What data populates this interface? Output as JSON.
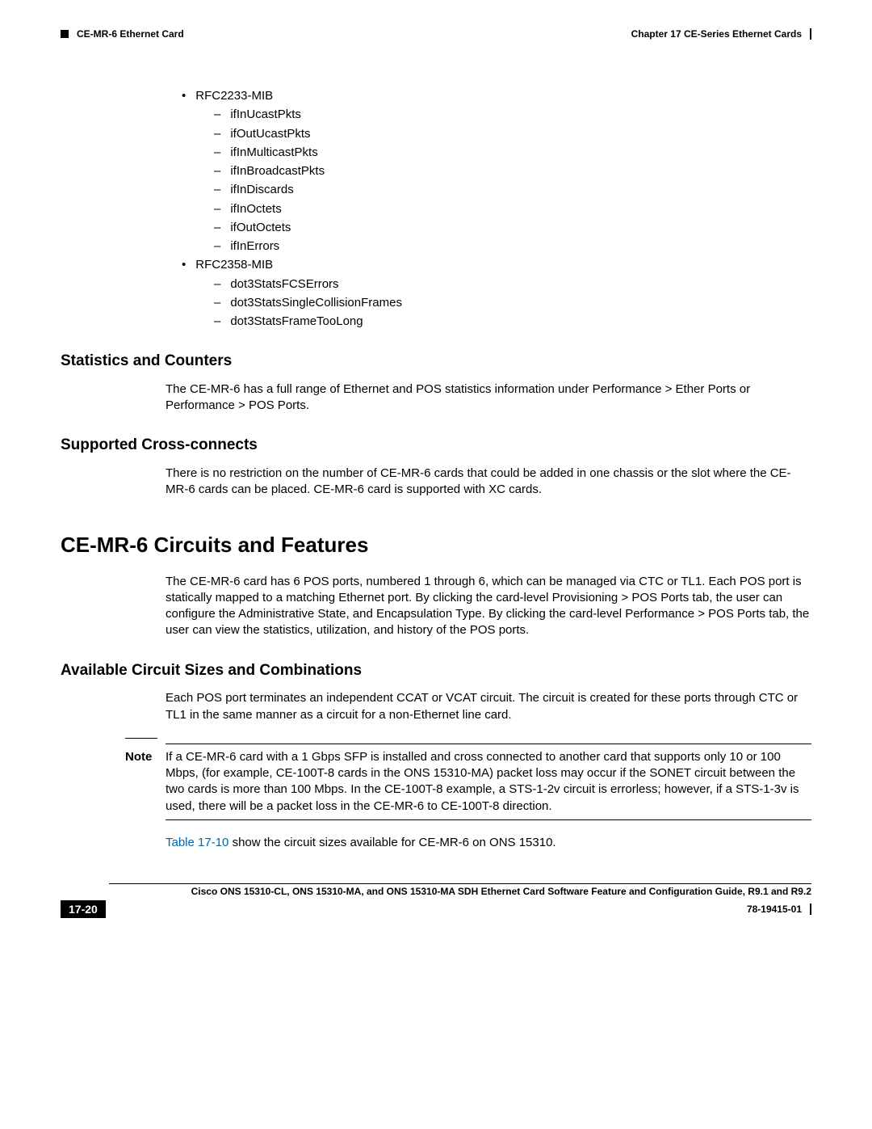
{
  "header": {
    "chapter": "Chapter 17    CE-Series Ethernet Cards",
    "section": "CE-MR-6 Ethernet Card"
  },
  "mib2233": {
    "title": "RFC2233-MIB",
    "items": [
      "ifInUcastPkts",
      "ifOutUcastPkts",
      "ifInMulticastPkts",
      "ifInBroadcastPkts",
      "ifInDiscards",
      "ifInOctets",
      "ifOutOctets",
      "ifInErrors"
    ]
  },
  "mib2358": {
    "title": "RFC2358-MIB",
    "items": [
      "dot3StatsFCSErrors",
      "dot3StatsSingleCollisionFrames",
      "dot3StatsFrameTooLong"
    ]
  },
  "h_stats": "Statistics and Counters",
  "p_stats": "The CE-MR-6 has a full range of Ethernet and POS statistics information under Performance > Ether Ports or Performance > POS Ports.",
  "h_cross": "Supported Cross-connects",
  "p_cross": "There is no restriction on the number of CE-MR-6 cards that could be added in one chassis or the slot where the CE-MR-6 cards can be placed. CE-MR-6 card is supported with XC cards.",
  "h_circ": "CE-MR-6 Circuits and Features",
  "p_circ": "The CE-MR-6 card has 6 POS ports, numbered 1 through 6, which can be managed via CTC or TL1. Each POS port is statically mapped to a matching Ethernet port. By clicking the card-level Provisioning > POS Ports tab, the user can configure the Administrative State, and Encapsulation Type. By clicking the card-level Performance > POS Ports tab, the user can view the statistics, utilization, and history of the POS ports.",
  "h_avail": "Available Circuit Sizes and Combinations",
  "p_avail": "Each POS port terminates an independent CCAT or VCAT circuit. The circuit is created for these ports through CTC or TL1 in the same manner as a circuit for a non-Ethernet line card.",
  "note_label": "Note",
  "note_text": "If a CE-MR-6 card with a 1 Gbps SFP is installed and cross connected to another card that supports only 10 or 100 Mbps, (for example, CE-100T-8 cards in the ONS 15310-MA) packet loss may occur if the SONET circuit between the two cards is more than 100 Mbps. In the CE-100T-8 example, a STS-1-2v circuit is errorless; however, if a STS-1-3v is used, there will be a packet loss in the CE-MR-6 to CE-100T-8 direction.",
  "table_ref": "Table 17-10",
  "p_table": " show the circuit sizes available for CE-MR-6 on ONS 15310.",
  "footer": {
    "title": "Cisco ONS 15310-CL, ONS 15310-MA, and ONS 15310-MA SDH Ethernet Card Software Feature and Configuration Guide, R9.1 and R9.2",
    "page": "17-20",
    "docid": "78-19415-01"
  }
}
